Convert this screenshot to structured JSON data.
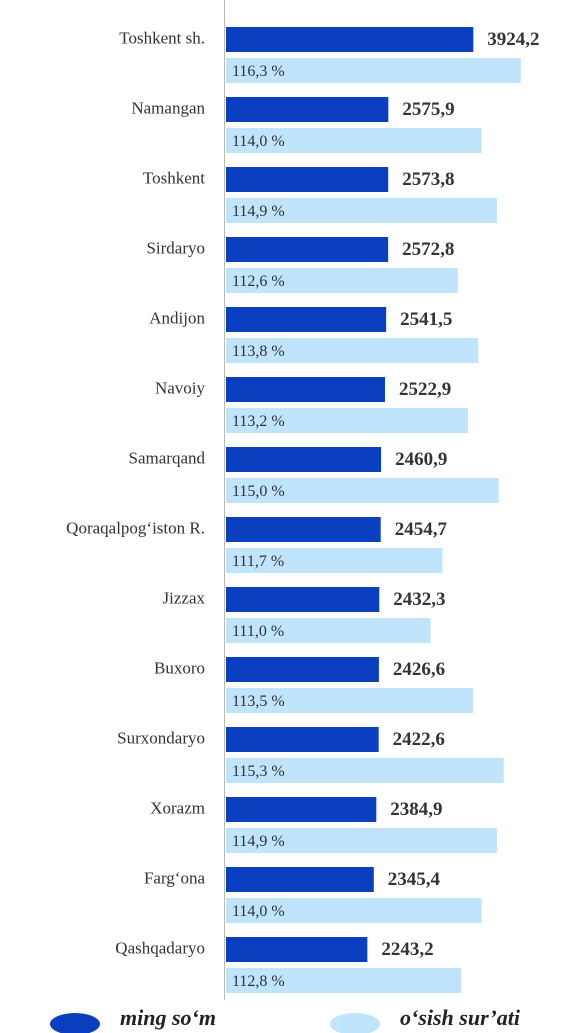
{
  "chart_data": {
    "type": "bar",
    "orientation": "horizontal",
    "categories": [
      "Toshkent sh.",
      "Namangan",
      "Toshkent",
      "Sirdaryo",
      "Andijon",
      "Navoiy",
      "Samarqand",
      "Qoraqalpog‘iston R.",
      "Jizzax",
      "Buxoro",
      "Surxondaryo",
      "Xorazm",
      "Farg‘ona",
      "Qashqadaryo"
    ],
    "xlim": [
      0,
      5300
    ],
    "x2lim": [
      99,
      118.6
    ],
    "series": [
      {
        "name": "ming so‘m",
        "color": "#0a3fbf",
        "values": [
          3924.2,
          2575.9,
          2573.8,
          2572.8,
          2541.5,
          2522.9,
          2460.9,
          2454.7,
          2432.3,
          2426.6,
          2422.6,
          2384.9,
          2345.4,
          2243.2
        ],
        "value_labels": [
          "3924,2",
          "2575,9",
          "2573,8",
          "2572,8",
          "2541,5",
          "2522,9",
          "2460,9",
          "2454,7",
          "2432,3",
          "2426,6",
          "2422,6",
          "2384,9",
          "2345,4",
          "2243,2"
        ]
      },
      {
        "name": "o‘sish sur’ati",
        "color": "#bfe4fb",
        "axis": "x2",
        "values": [
          116.3,
          114.0,
          114.9,
          112.6,
          113.8,
          113.2,
          115.0,
          111.7,
          111.0,
          113.5,
          115.3,
          114.9,
          114.0,
          112.8
        ],
        "value_labels": [
          "116,3 %",
          "114,0 %",
          "114,9 %",
          "112,6 %",
          "113,8 %",
          "113,2 %",
          "115,0 %",
          "111,7 %",
          "111,0 %",
          "113,5 %",
          "115,3 %",
          "114,9 %",
          "114,0 %",
          "112,8 %"
        ]
      }
    ]
  }
}
